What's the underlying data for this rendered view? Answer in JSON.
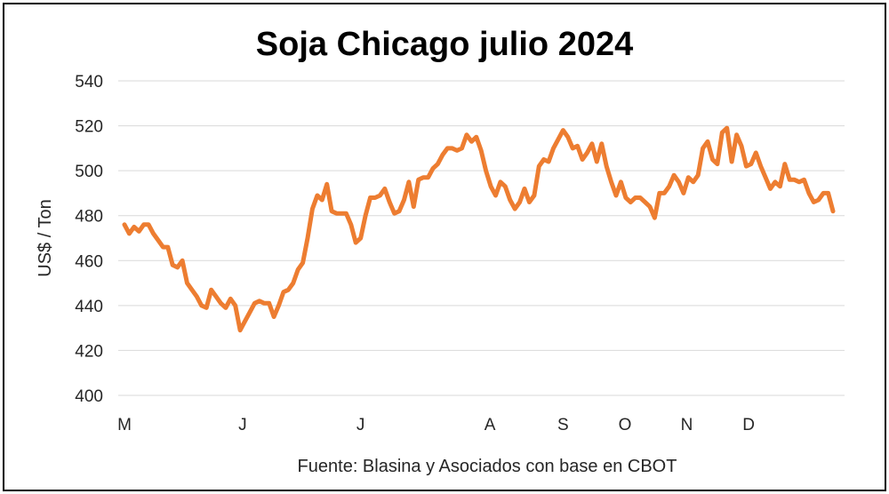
{
  "chart_data": {
    "type": "line",
    "title": "Soja Chicago julio 2024",
    "ylabel": "US$ / Ton",
    "source": "Fuente: Blasina y Asociados con base en CBOT",
    "ylim": [
      400,
      540
    ],
    "yticks": [
      400,
      420,
      440,
      460,
      480,
      500,
      520,
      540
    ],
    "x_tick_labels": [
      "M",
      "J",
      "J",
      "A",
      "S",
      "O",
      "N",
      "D"
    ],
    "x_tick_positions": [
      0,
      21,
      42,
      65,
      78,
      89,
      100,
      111
    ],
    "x_range": [
      0,
      126
    ],
    "grid": true,
    "legend": "none",
    "series_color": "#ed7d31",
    "series": [
      {
        "values": [
          476,
          472,
          475,
          473,
          476,
          476,
          472,
          469,
          466,
          466,
          458,
          457,
          460,
          450,
          447,
          444,
          440,
          439,
          447,
          444,
          441,
          439,
          443,
          440,
          429,
          433,
          437,
          441,
          442,
          441,
          441,
          435,
          440,
          446,
          447,
          450,
          456,
          459,
          470,
          483,
          489,
          487,
          494,
          482,
          481,
          481,
          481,
          476,
          468,
          470,
          480,
          488,
          488,
          489,
          492,
          486,
          481,
          482,
          487,
          495,
          484,
          496,
          497,
          497,
          501,
          503,
          507,
          510,
          510,
          509,
          510,
          516,
          513,
          515,
          509,
          500,
          493,
          489,
          495,
          493,
          487,
          483,
          486,
          492,
          486,
          489,
          502,
          505,
          504,
          510,
          514,
          518,
          515,
          510,
          511,
          505,
          508,
          512,
          504,
          512,
          502,
          495,
          489,
          495,
          488,
          486,
          488,
          488,
          486,
          484,
          479,
          490,
          490,
          493,
          498,
          495,
          490,
          497,
          495,
          498,
          510,
          513,
          505,
          503,
          517,
          519,
          504,
          516,
          511,
          502,
          503,
          508,
          502,
          497,
          492,
          495,
          493,
          503,
          496,
          496,
          495,
          496,
          490,
          486,
          487,
          490,
          490,
          482
        ]
      }
    ]
  }
}
